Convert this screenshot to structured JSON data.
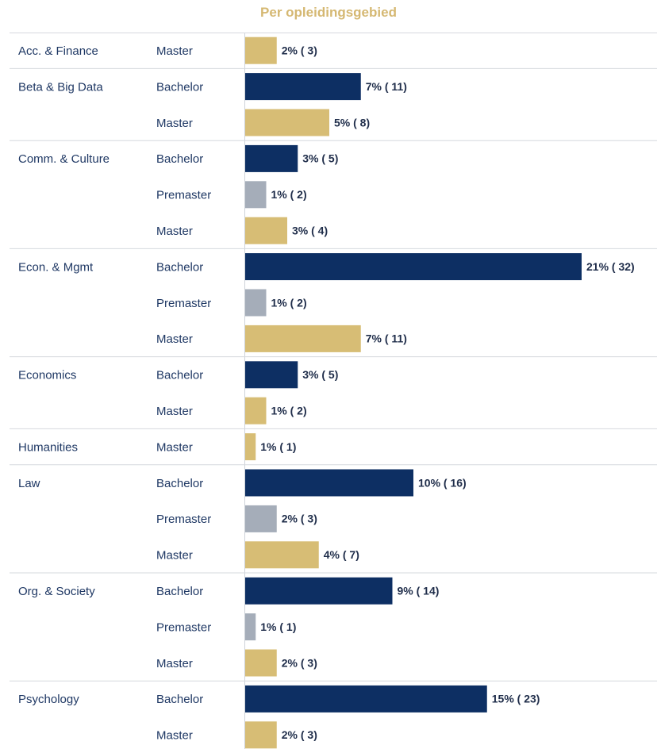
{
  "chart_data": {
    "type": "bar",
    "orientation": "horizontal",
    "title": "Per opleidingsgebied",
    "colors": {
      "Bachelor": "#0d2f63",
      "Premaster": "#a5adb9",
      "Master": "#d7bd75"
    },
    "groups": [
      {
        "category": "Acc. & Finance",
        "rows": [
          {
            "level": "Master",
            "percent": 2,
            "count": 3,
            "label": "2% ( 3)"
          }
        ]
      },
      {
        "category": "Beta & Big Data",
        "rows": [
          {
            "level": "Bachelor",
            "percent": 7,
            "count": 11,
            "label": "7% ( 11)"
          },
          {
            "level": "Master",
            "percent": 5,
            "count": 8,
            "label": "5% ( 8)"
          }
        ]
      },
      {
        "category": "Comm. & Culture",
        "rows": [
          {
            "level": "Bachelor",
            "percent": 3,
            "count": 5,
            "label": "3% ( 5)"
          },
          {
            "level": "Premaster",
            "percent": 1,
            "count": 2,
            "label": "1% ( 2)"
          },
          {
            "level": "Master",
            "percent": 3,
            "count": 4,
            "label": "3% ( 4)"
          }
        ]
      },
      {
        "category": "Econ. & Mgmt",
        "rows": [
          {
            "level": "Bachelor",
            "percent": 21,
            "count": 32,
            "label": "21% ( 32)"
          },
          {
            "level": "Premaster",
            "percent": 1,
            "count": 2,
            "label": "1% ( 2)"
          },
          {
            "level": "Master",
            "percent": 7,
            "count": 11,
            "label": "7% ( 11)"
          }
        ]
      },
      {
        "category": "Economics",
        "rows": [
          {
            "level": "Bachelor",
            "percent": 3,
            "count": 5,
            "label": "3% ( 5)"
          },
          {
            "level": "Master",
            "percent": 1,
            "count": 2,
            "label": "1% ( 2)"
          }
        ]
      },
      {
        "category": "Humanities",
        "rows": [
          {
            "level": "Master",
            "percent": 1,
            "count": 1,
            "label": "1% ( 1)"
          }
        ]
      },
      {
        "category": "Law",
        "rows": [
          {
            "level": "Bachelor",
            "percent": 10,
            "count": 16,
            "label": "10% ( 16)"
          },
          {
            "level": "Premaster",
            "percent": 2,
            "count": 3,
            "label": "2% ( 3)"
          },
          {
            "level": "Master",
            "percent": 4,
            "count": 7,
            "label": "4% ( 7)"
          }
        ]
      },
      {
        "category": "Org. & Society",
        "rows": [
          {
            "level": "Bachelor",
            "percent": 9,
            "count": 14,
            "label": "9% ( 14)"
          },
          {
            "level": "Premaster",
            "percent": 1,
            "count": 1,
            "label": "1% ( 1)"
          },
          {
            "level": "Master",
            "percent": 2,
            "count": 3,
            "label": "2% ( 3)"
          }
        ]
      },
      {
        "category": "Psychology",
        "rows": [
          {
            "level": "Bachelor",
            "percent": 15,
            "count": 23,
            "label": "15% ( 23)"
          },
          {
            "level": "Master",
            "percent": 2,
            "count": 3,
            "label": "2% ( 3)"
          }
        ]
      }
    ]
  }
}
